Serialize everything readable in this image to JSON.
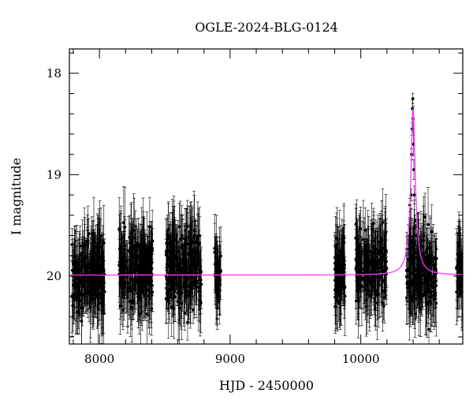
{
  "chart_data": {
    "type": "scatter",
    "title": "OGLE-2024-BLG-0124",
    "xlabel": "HJD - 2450000",
    "ylabel": "I magnitude",
    "xlim": [
      7770,
      10780
    ],
    "ylim": [
      20.67,
      17.76
    ],
    "y_inverted": true,
    "x_ticks": [
      8000,
      9000,
      10000
    ],
    "y_ticks": [
      18,
      19,
      20
    ],
    "x_minor_step": 200,
    "y_minor_step": 0.2,
    "grid": false,
    "point_color": "#000000",
    "model_color": "#ff33ff",
    "model": {
      "baseline_mag": 19.99,
      "peak_mag": 18.35,
      "t0": 10400,
      "tE": 18,
      "wing_mag": 19.98
    },
    "observing_seasons": [
      {
        "start": 7790,
        "end": 8040,
        "mag_center": 19.99,
        "mag_spread": 0.33,
        "point_count": 240
      },
      {
        "start": 8150,
        "end": 8410,
        "mag_center": 19.93,
        "mag_spread": 0.33,
        "point_count": 240
      },
      {
        "start": 8510,
        "end": 8780,
        "mag_center": 19.92,
        "mag_spread": 0.33,
        "point_count": 240
      },
      {
        "start": 8880,
        "end": 8930,
        "mag_center": 20.0,
        "mag_spread": 0.25,
        "point_count": 40
      },
      {
        "start": 9800,
        "end": 9880,
        "mag_center": 19.95,
        "mag_spread": 0.3,
        "point_count": 80
      },
      {
        "start": 9960,
        "end": 10200,
        "mag_center": 19.92,
        "mag_spread": 0.33,
        "point_count": 200
      },
      {
        "start": 10350,
        "end": 10580,
        "mag_center": 19.97,
        "mag_spread": 0.33,
        "point_count": 220
      },
      {
        "start": 10730,
        "end": 10780,
        "mag_center": 19.9,
        "mag_spread": 0.25,
        "point_count": 40
      }
    ],
    "peak_points": [
      {
        "x": 10375,
        "y": 19.3
      },
      {
        "x": 10385,
        "y": 19.2
      },
      {
        "x": 10388,
        "y": 18.8
      },
      {
        "x": 10392,
        "y": 18.55
      },
      {
        "x": 10395,
        "y": 18.35
      },
      {
        "x": 10398,
        "y": 18.25
      },
      {
        "x": 10400,
        "y": 18.45
      },
      {
        "x": 10403,
        "y": 18.7
      },
      {
        "x": 10406,
        "y": 18.95
      },
      {
        "x": 10410,
        "y": 19.2
      },
      {
        "x": 10415,
        "y": 19.45
      },
      {
        "x": 10420,
        "y": 19.6
      }
    ]
  }
}
